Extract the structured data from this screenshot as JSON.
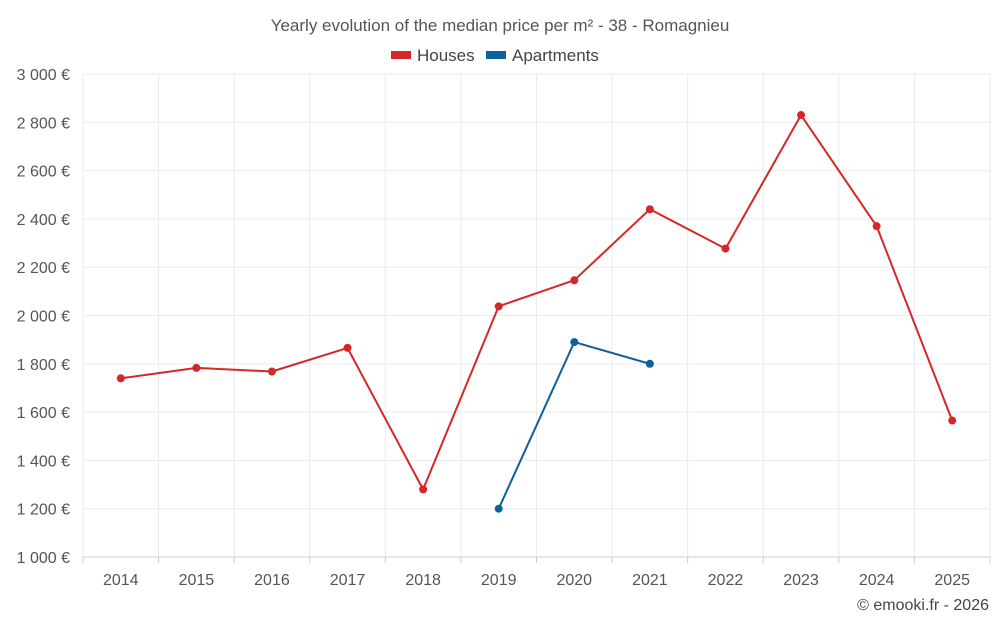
{
  "chart_data": {
    "type": "line",
    "title": "Yearly evolution of the median price per m² - 38 - Romagnieu",
    "categories": [
      "2014",
      "2015",
      "2016",
      "2017",
      "2018",
      "2019",
      "2020",
      "2021",
      "2022",
      "2023",
      "2024",
      "2025"
    ],
    "ylim": [
      1000,
      3000
    ],
    "yticks": [
      1000,
      1200,
      1400,
      1600,
      1800,
      2000,
      2200,
      2400,
      2600,
      2800,
      3000
    ],
    "ytick_labels": [
      "1 000 €",
      "1 200 €",
      "1 400 €",
      "1 600 €",
      "1 800 €",
      "2 000 €",
      "2 200 €",
      "2 400 €",
      "2 600 €",
      "2 800 €",
      "3 000 €"
    ],
    "grid": true,
    "legend_position": "top-center",
    "series": [
      {
        "name": "Houses",
        "color": "#d62728",
        "values": [
          1740,
          1783,
          1768,
          1866,
          1280,
          2038,
          2146,
          2440,
          2277,
          2830,
          2370,
          1565
        ]
      },
      {
        "name": "Apartments",
        "color": "#0d6099",
        "values": [
          null,
          null,
          null,
          null,
          null,
          1200,
          1890,
          1800,
          null,
          null,
          null,
          null
        ]
      }
    ],
    "credit": "© emooki.fr - 2026"
  }
}
